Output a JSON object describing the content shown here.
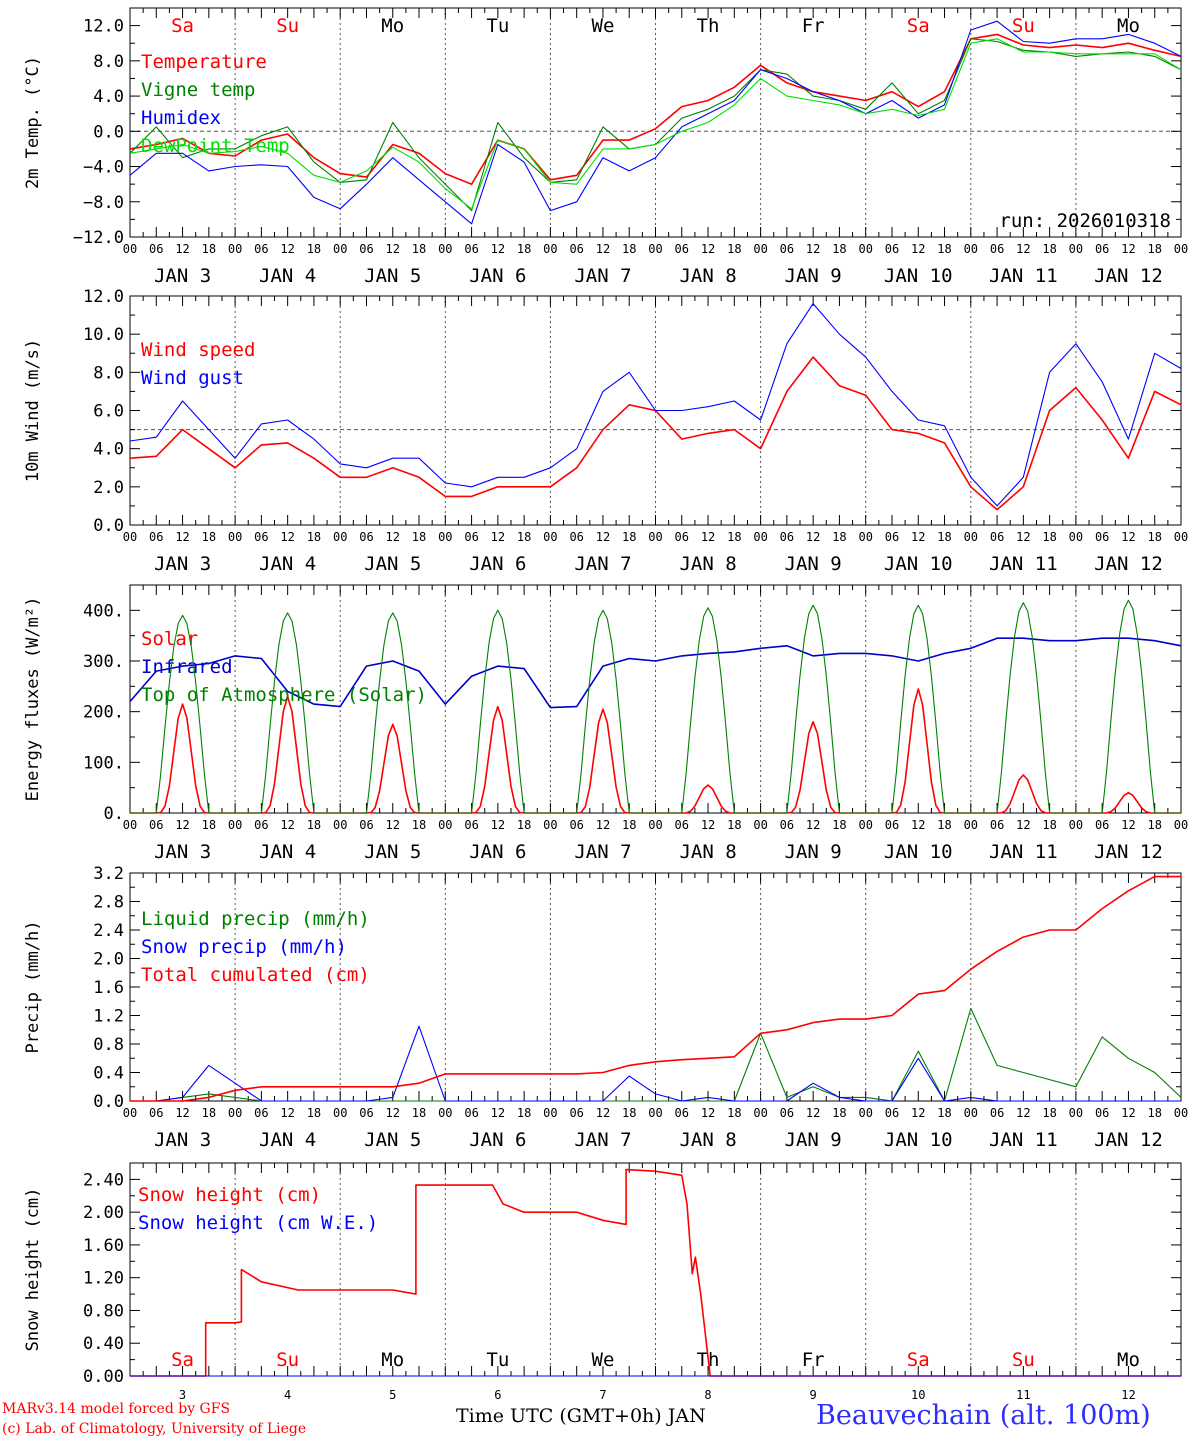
{
  "footer": {
    "credit1": "MARv3.14 model forced by GFS",
    "credit2": "(c) Lab. of Climatology, University of Liege",
    "xlabel": "Time UTC (GMT+0h) JAN",
    "station": "Beauvechain (alt. 100m)"
  },
  "colors": {
    "red": "#ff0000",
    "blue": "#0000ff",
    "darkgreen": "#008000",
    "green": "#00e000",
    "navy": "#0000c8"
  },
  "time_axis": {
    "hour_ticks": [
      "00",
      "06",
      "12",
      "18"
    ],
    "final_tick": "00",
    "date_labels": [
      "JAN  3",
      "JAN  4",
      "JAN  5",
      "JAN  6",
      "JAN  7",
      "JAN  8",
      "JAN  9",
      "JAN 10",
      "JAN 11",
      "JAN 12"
    ],
    "weekdays": [
      "Sa",
      "Su",
      "Mo",
      "Tu",
      "We",
      "Th",
      "Fr",
      "Sa",
      "Su",
      "Mo"
    ],
    "weekend_days": [
      true,
      true,
      false,
      false,
      false,
      false,
      false,
      true,
      true,
      false
    ],
    "day_numbers": [
      "3",
      "4",
      "5",
      "6",
      "7",
      "8",
      "9",
      "10",
      "11",
      "12"
    ]
  },
  "chart_data": [
    {
      "type": "line",
      "ylabel": "2m Temp. (°C)",
      "ylim": [
        -12,
        14
      ],
      "yticks": [
        -12,
        -8,
        -4,
        0,
        4,
        8,
        12
      ],
      "ytick_labels": [
        "−12.0",
        "−8.0",
        "−4.0",
        "0.0",
        "4.0",
        "8.0",
        "12.0"
      ],
      "hline": 0,
      "annotation": "run: 2026010318",
      "x_days_from_jan3": [
        0,
        0.25,
        0.5,
        0.75,
        1,
        1.25,
        1.5,
        1.75,
        2,
        2.25,
        2.5,
        2.75,
        3,
        3.25,
        3.5,
        3.75,
        4,
        4.25,
        4.5,
        4.75,
        5,
        5.25,
        5.5,
        5.75,
        6,
        6.25,
        6.5,
        6.75,
        7,
        7.25,
        7.5,
        7.75,
        8,
        8.25,
        8.5,
        8.75,
        9,
        9.25,
        9.5,
        9.75,
        10
      ],
      "series": [
        {
          "name": "Temperature",
          "color": "#ff0000",
          "values": [
            -2,
            -1.5,
            -0.8,
            -2.5,
            -2.8,
            -1,
            -0.3,
            -3,
            -4.8,
            -5.2,
            -1.5,
            -2.5,
            -4.8,
            -6,
            -1,
            -2,
            -5.5,
            -5,
            -1,
            -1,
            0.3,
            2.8,
            3.5,
            5,
            7.5,
            5.5,
            4.5,
            4,
            3.5,
            4.5,
            2.8,
            4.5,
            10.5,
            11,
            9.8,
            9.5,
            9.8,
            9.5,
            10,
            9.2,
            8.5
          ]
        },
        {
          "name": "Vigne temp",
          "color": "#008000",
          "values": [
            -2.5,
            0.5,
            -3,
            -2,
            -2,
            -0.5,
            0.5,
            -3.5,
            -5.8,
            -5.5,
            1,
            -3,
            -6,
            -9,
            1,
            -3,
            -5.8,
            -5.5,
            0.5,
            -2,
            -1.5,
            1.5,
            2.5,
            4,
            7,
            6.5,
            4,
            3.5,
            2.5,
            5.5,
            2,
            3.5,
            10.5,
            10.2,
            9.2,
            9,
            8.5,
            8.8,
            9,
            8.5,
            7
          ]
        },
        {
          "name": "Humidex",
          "color": "#0000ff",
          "values": [
            -5,
            -2.5,
            -2.5,
            -4.5,
            -4,
            -3.8,
            -4,
            -7.5,
            -8.8,
            -6,
            -3,
            -5.5,
            -8,
            -10.5,
            -1.5,
            -3.5,
            -9,
            -8,
            -3,
            -4.5,
            -3,
            0.5,
            2,
            3.5,
            7,
            6,
            4.5,
            3.5,
            2,
            3.5,
            1.5,
            3,
            11.5,
            12.5,
            10.2,
            10,
            10.5,
            10.5,
            11,
            10,
            8.5
          ]
        },
        {
          "name": "DewPoint Temp",
          "color": "#00e000",
          "values": [
            -2.5,
            -2,
            -1.5,
            -2.5,
            -2.3,
            -1.7,
            -2.5,
            -5,
            -5.8,
            -4.5,
            -1.8,
            -3.5,
            -6.5,
            -8.8,
            -1,
            -2,
            -5.8,
            -6,
            -2,
            -2,
            -1.5,
            0,
            1,
            3,
            6,
            4,
            3.5,
            3,
            2,
            2.5,
            1.8,
            2.5,
            10,
            10.5,
            9,
            9,
            8.8,
            8.8,
            8.8,
            8.8,
            7
          ]
        }
      ]
    },
    {
      "type": "line",
      "ylabel": "10m Wind (m/s)",
      "ylim": [
        0,
        12
      ],
      "yticks": [
        0,
        2,
        4,
        6,
        8,
        10,
        12
      ],
      "ytick_labels": [
        "0.0",
        "2.0",
        "4.0",
        "6.0",
        "8.0",
        "10.0",
        "12.0"
      ],
      "hline": 5,
      "x_days_from_jan3": [
        0,
        0.25,
        0.5,
        0.75,
        1,
        1.25,
        1.5,
        1.75,
        2,
        2.25,
        2.5,
        2.75,
        3,
        3.25,
        3.5,
        3.75,
        4,
        4.25,
        4.5,
        4.75,
        5,
        5.25,
        5.5,
        5.75,
        6,
        6.25,
        6.5,
        6.75,
        7,
        7.25,
        7.5,
        7.75,
        8,
        8.25,
        8.5,
        8.75,
        9,
        9.25,
        9.5,
        9.75,
        10
      ],
      "series": [
        {
          "name": "Wind speed",
          "color": "#ff0000",
          "values": [
            3.5,
            3.6,
            5,
            4,
            3,
            4.2,
            4.3,
            3.5,
            2.5,
            2.5,
            3,
            2.5,
            1.5,
            1.5,
            2,
            2,
            2,
            3,
            5,
            6.3,
            6,
            4.5,
            4.8,
            5,
            4,
            7,
            8.8,
            7.3,
            6.8,
            5,
            4.8,
            4.3,
            2,
            0.8,
            2,
            6,
            7.2,
            5.5,
            3.5,
            7,
            6.3
          ]
        },
        {
          "name": "Wind gust",
          "color": "#0000ff",
          "values": [
            4.4,
            4.6,
            6.5,
            5,
            3.5,
            5.3,
            5.5,
            4.5,
            3.2,
            3,
            3.5,
            3.5,
            2.2,
            2,
            2.5,
            2.5,
            3,
            4,
            7,
            8,
            6,
            6,
            6.2,
            6.5,
            5.5,
            9.5,
            11.6,
            10,
            8.8,
            7,
            5.5,
            5.2,
            2.5,
            1,
            2.5,
            8,
            9.5,
            7.5,
            4.5,
            9,
            8.2
          ]
        }
      ]
    },
    {
      "type": "line",
      "ylabel": "Energy fluxes (W/m²)",
      "ylim": [
        0,
        450
      ],
      "yticks": [
        0,
        100,
        200,
        300,
        400
      ],
      "ytick_labels": [
        "0.",
        "100.",
        "200.",
        "300.",
        "400."
      ],
      "series": [
        {
          "name": "Solar",
          "color": "#ff0000",
          "daily_peaks": [
            215,
            230,
            175,
            210,
            205,
            55,
            180,
            245,
            75,
            40
          ]
        },
        {
          "name": "Infrared",
          "color": "#0000c8",
          "x_days_from_jan3": [
            0,
            0.25,
            0.5,
            0.75,
            1,
            1.25,
            1.5,
            1.75,
            2,
            2.25,
            2.5,
            2.75,
            3,
            3.25,
            3.5,
            3.75,
            4,
            4.25,
            4.5,
            4.75,
            5,
            5.25,
            5.5,
            5.75,
            6,
            6.25,
            6.5,
            6.75,
            7,
            7.25,
            7.5,
            7.75,
            8,
            8.25,
            8.5,
            8.75,
            9,
            9.25,
            9.5,
            9.75,
            10
          ],
          "values": [
            220,
            280,
            290,
            295,
            310,
            305,
            240,
            215,
            210,
            290,
            300,
            280,
            215,
            270,
            290,
            285,
            208,
            210,
            290,
            305,
            300,
            310,
            315,
            318,
            325,
            330,
            310,
            315,
            315,
            310,
            300,
            315,
            325,
            345,
            345,
            340,
            340,
            345,
            345,
            340,
            330
          ]
        },
        {
          "name": "Top of Atmosphere (Solar)",
          "color": "#008000",
          "daily_peaks": [
            390,
            395,
            395,
            400,
            400,
            405,
            410,
            410,
            415,
            420
          ]
        }
      ]
    },
    {
      "type": "line",
      "ylabel": "Precip (mm/h)",
      "ylim": [
        0,
        3.2
      ],
      "yticks": [
        0,
        0.4,
        0.8,
        1.2,
        1.6,
        2.0,
        2.4,
        2.8,
        3.2
      ],
      "ytick_labels": [
        "0.0",
        "0.4",
        "0.8",
        "1.2",
        "1.6",
        "2.0",
        "2.4",
        "2.8",
        "3.2"
      ],
      "x_days_from_jan3": [
        0,
        0.25,
        0.5,
        0.75,
        1,
        1.25,
        1.5,
        1.75,
        2,
        2.25,
        2.5,
        2.75,
        3,
        3.25,
        3.5,
        3.75,
        4,
        4.25,
        4.5,
        4.75,
        5,
        5.25,
        5.5,
        5.75,
        6,
        6.25,
        6.5,
        6.75,
        7,
        7.25,
        7.5,
        7.75,
        8,
        8.25,
        8.5,
        8.75,
        9,
        9.25,
        9.5,
        9.75,
        10
      ],
      "series": [
        {
          "name": "Liquid precip (mm/h)",
          "color": "#008000",
          "values": [
            0,
            0,
            0.05,
            0.1,
            0.05,
            0,
            0,
            0,
            0,
            0,
            0,
            0,
            0,
            0,
            0,
            0,
            0,
            0,
            0,
            0,
            0,
            0,
            0,
            0,
            0.95,
            0.05,
            0.2,
            0.05,
            0.05,
            0,
            0.7,
            0,
            1.3,
            0.5,
            0.4,
            0.3,
            0.2,
            0.9,
            0.6,
            0.4,
            0.05
          ]
        },
        {
          "name": "Snow precip (mm/h)",
          "color": "#0000ff",
          "values": [
            0,
            0,
            0.05,
            0.5,
            0.25,
            0,
            0,
            0,
            0,
            0,
            0.05,
            1.05,
            0,
            0,
            0,
            0,
            0,
            0,
            0,
            0.35,
            0.1,
            0,
            0.05,
            0,
            0,
            0,
            0.25,
            0.05,
            0,
            0,
            0.6,
            0,
            0.05,
            0,
            0,
            0,
            0,
            0,
            0,
            0,
            0
          ]
        },
        {
          "name": "Total cumulated (cm)",
          "color": "#ff0000",
          "values": [
            0,
            0,
            0,
            0.05,
            0.15,
            0.2,
            0.2,
            0.2,
            0.2,
            0.2,
            0.2,
            0.25,
            0.38,
            0.38,
            0.38,
            0.38,
            0.38,
            0.38,
            0.4,
            0.5,
            0.55,
            0.58,
            0.6,
            0.62,
            0.95,
            1.0,
            1.1,
            1.15,
            1.15,
            1.2,
            1.5,
            1.55,
            1.85,
            2.1,
            2.3,
            2.4,
            2.4,
            2.7,
            2.95,
            3.15,
            3.15
          ]
        }
      ]
    },
    {
      "type": "line",
      "ylabel": "Snow height (cm)",
      "ylim": [
        0,
        2.6
      ],
      "yticks": [
        0,
        0.4,
        0.8,
        1.2,
        1.6,
        2.0,
        2.4
      ],
      "ytick_labels": [
        "0.00",
        "0.40",
        "0.80",
        "1.20",
        "1.60",
        "2.00",
        "2.40"
      ],
      "series": [
        {
          "name": "Snow height (cm)",
          "color": "#ff0000",
          "x_days_from_jan3": [
            0,
            0.72,
            0.72,
            1.0,
            1.06,
            1.06,
            1.25,
            1.6,
            2.0,
            2.5,
            2.72,
            2.72,
            3.0,
            3.45,
            3.55,
            3.75,
            4.0,
            4.25,
            4.5,
            4.72,
            4.72,
            5.0,
            5.25,
            5.3,
            5.35,
            5.38,
            5.43,
            5.52,
            5.52,
            10
          ],
          "values": [
            0,
            0,
            0.65,
            0.65,
            0.66,
            1.3,
            1.15,
            1.05,
            1.05,
            1.05,
            1.0,
            2.33,
            2.33,
            2.33,
            2.1,
            2.0,
            2.0,
            2.0,
            1.9,
            1.85,
            2.52,
            2.5,
            2.45,
            2.1,
            1.25,
            1.45,
            1.0,
            0,
            0,
            0
          ]
        },
        {
          "name": "Snow height (cm W.E.)",
          "color": "#0000ff",
          "x_days_from_jan3": [
            0,
            10
          ],
          "values": [
            0,
            0
          ]
        }
      ]
    }
  ]
}
